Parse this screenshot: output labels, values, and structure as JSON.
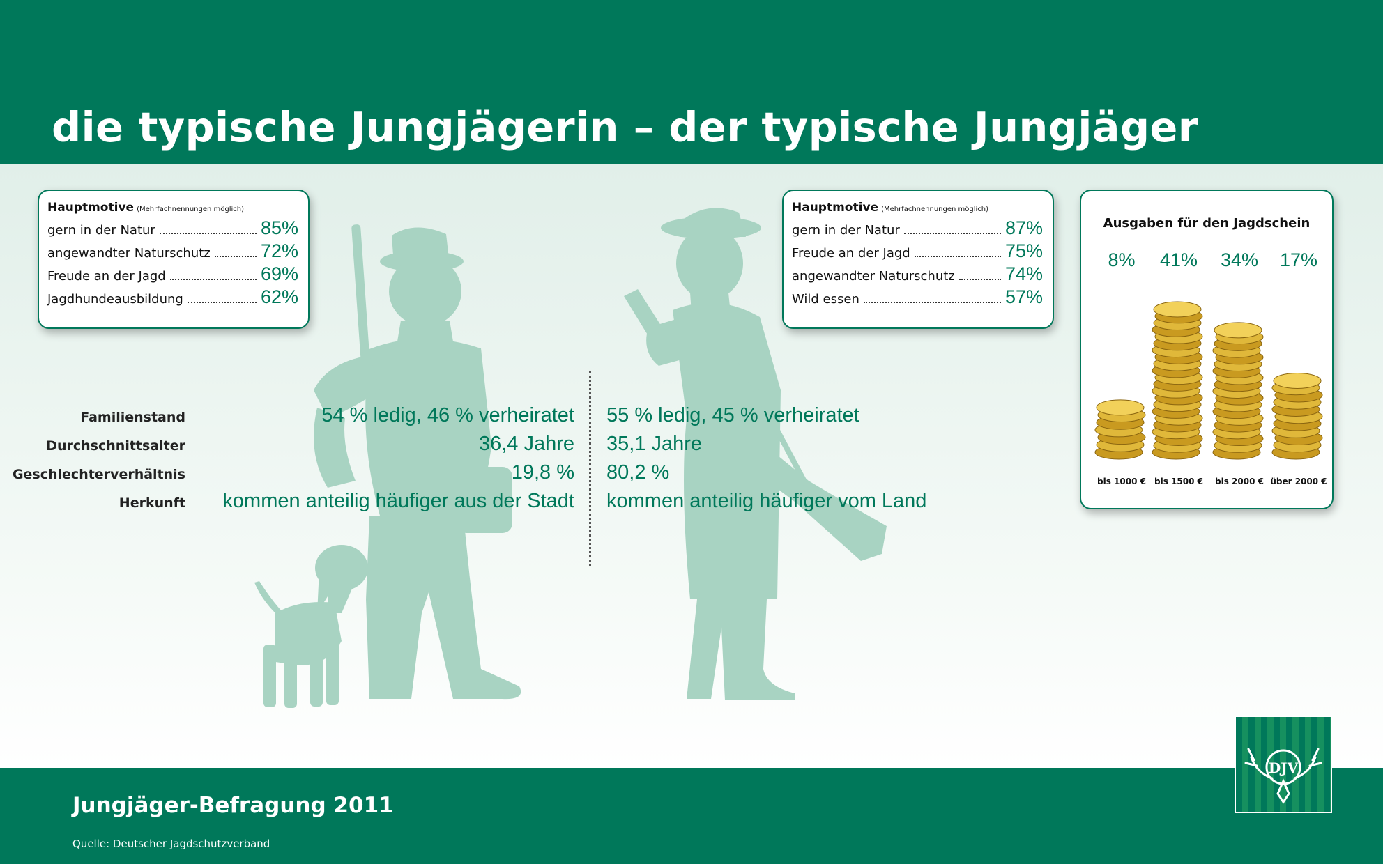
{
  "title": "die typische Jungjägerin – der typische Jungjäger",
  "footer": {
    "survey": "Jungjäger-Befragung 2011",
    "source": "Quelle: Deutscher Jagdschutzverband"
  },
  "motives_female": {
    "heading": "Hauptmotive",
    "note": "(Mehrfachnennungen möglich)",
    "items": [
      {
        "label": "gern in der Natur",
        "value": "85%"
      },
      {
        "label": "angewandter Naturschutz",
        "value": "72%"
      },
      {
        "label": "Freude an der Jagd",
        "value": "69%"
      },
      {
        "label": "Jagdhundeausbildung",
        "value": "62%"
      }
    ]
  },
  "motives_male": {
    "heading": "Hauptmotive",
    "note": "(Mehrfachnennungen möglich)",
    "items": [
      {
        "label": "gern in der Natur",
        "value": "87%"
      },
      {
        "label": "Freude an der Jagd",
        "value": "75%"
      },
      {
        "label": "angewandter Naturschutz",
        "value": "74%"
      },
      {
        "label": "Wild essen",
        "value": "57%"
      }
    ]
  },
  "stats": [
    {
      "label": "Familienstand",
      "female": "54 % ledig, 46 % verheiratet",
      "male": "55 % ledig, 45 % verheiratet"
    },
    {
      "label": "Durchschnittsalter",
      "female": "36,4 Jahre",
      "male": "35,1 Jahre"
    },
    {
      "label": "Geschlechterverhältnis",
      "female": "19,8 %",
      "male": "80,2 %"
    },
    {
      "label": "Herkunft",
      "female": "kommen anteilig häufiger aus der Stadt",
      "male": "kommen anteilig häufiger vom Land"
    }
  ],
  "costs": {
    "title": "Ausgaben für den Jagdschein",
    "items": [
      {
        "pct": "8%",
        "label": "bis 1000 €",
        "share": 8
      },
      {
        "pct": "41%",
        "label": "bis 1500 €",
        "share": 41
      },
      {
        "pct": "34%",
        "label": "bis 2000 €",
        "share": 34
      },
      {
        "pct": "17%",
        "label": "über 2000 €",
        "share": 17
      }
    ],
    "euro_symbol": "€"
  },
  "logo_text": "DJV",
  "colors": {
    "brand_green": "#00785a",
    "silhouette": "#a8d3c2",
    "coin_gold": "#e0b83a"
  }
}
